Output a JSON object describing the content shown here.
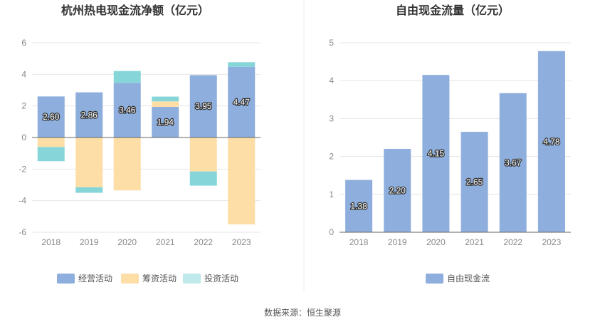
{
  "colors": {
    "operating": "#8eaedd",
    "financing": "#fedea7",
    "investing": "#86d6d9",
    "fcf": "#8eaedd",
    "legend_investing": "#c0e9ec",
    "grid": "#e6e6e6",
    "axis": "#666666"
  },
  "chart_data": [
    {
      "type": "bar",
      "stacked": true,
      "title": "杭州热电现金流净额（亿元）",
      "categories": [
        "2018",
        "2019",
        "2020",
        "2021",
        "2022",
        "2023"
      ],
      "series": [
        {
          "name": "经营活动",
          "values": [
            2.6,
            2.86,
            3.46,
            1.94,
            3.95,
            4.47
          ],
          "labels": [
            "2.60",
            "2.86",
            "3.46",
            "1.94",
            "3.95",
            "4.47"
          ]
        },
        {
          "name": "筹资活动",
          "values": [
            -0.6,
            -3.15,
            -3.35,
            0.35,
            -2.15,
            -5.5
          ]
        },
        {
          "name": "投资活动",
          "values": [
            -0.9,
            -0.35,
            0.75,
            0.3,
            -0.9,
            0.3
          ]
        }
      ],
      "yticks": [
        "6",
        "4",
        "2",
        "0",
        "-2",
        "-4",
        "-6"
      ],
      "ylim": [
        -6,
        6
      ],
      "legend": [
        "经营活动",
        "筹资活动",
        "投资活动"
      ]
    },
    {
      "type": "bar",
      "title": "自由现金流量（亿元）",
      "categories": [
        "2018",
        "2019",
        "2020",
        "2021",
        "2022",
        "2023"
      ],
      "series": [
        {
          "name": "自由现金流",
          "values": [
            1.38,
            2.2,
            4.15,
            2.65,
            3.67,
            4.78
          ],
          "labels": [
            "1.38",
            "2.20",
            "4.15",
            "2.65",
            "3.67",
            "4.78"
          ]
        }
      ],
      "yticks": [
        "5",
        "4",
        "3",
        "2",
        "1",
        "0"
      ],
      "ylim": [
        0,
        5
      ],
      "legend": [
        "自由现金流"
      ]
    }
  ],
  "source": "数据来源：恒生聚源"
}
